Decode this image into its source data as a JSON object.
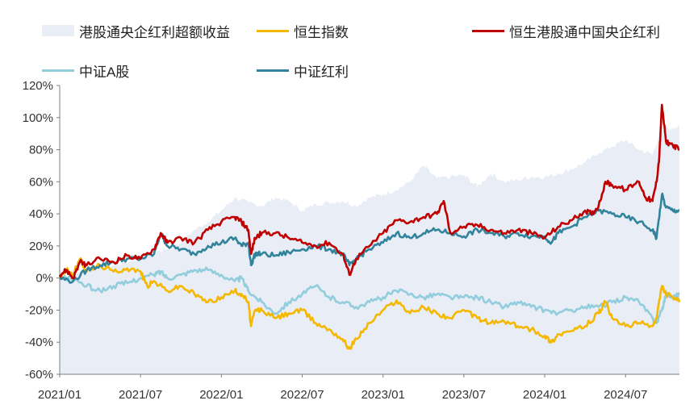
{
  "chart_data": {
    "type": "line",
    "title": "",
    "xlabel": "",
    "ylabel": "",
    "ylim": [
      -60,
      120
    ],
    "yticks": [
      -60,
      -40,
      -20,
      0,
      20,
      40,
      60,
      80,
      100,
      120
    ],
    "ytick_labels": [
      "-60%",
      "-40%",
      "-20%",
      "0%",
      "20%",
      "40%",
      "60%",
      "80%",
      "100%",
      "120%"
    ],
    "x_range": [
      0,
      46
    ],
    "xticks": [
      0,
      6,
      12,
      18,
      24,
      30,
      36,
      42
    ],
    "xtick_labels": [
      "2021/01",
      "2021/07",
      "2022/01",
      "2022/07",
      "2023/01",
      "2023/07",
      "2024/01",
      "2024/07"
    ],
    "x_unit": "months since 2021/01",
    "legend_position": "top",
    "series": [
      {
        "name": "港股通央企红利超额收益",
        "kind": "area",
        "color": "#e8edf6",
        "x": [
          0,
          2,
          4,
          6,
          7,
          8,
          9,
          10,
          11,
          12,
          13,
          14,
          15,
          16,
          17,
          18,
          19,
          20,
          21,
          22,
          23,
          24,
          25,
          26,
          27,
          28,
          29,
          30,
          31,
          32,
          33,
          34,
          35,
          36,
          37,
          38,
          39,
          40,
          41,
          42,
          43,
          44,
          44.5,
          45,
          45.5,
          46
        ],
        "values": [
          0,
          5,
          8,
          12,
          16,
          18,
          22,
          30,
          35,
          42,
          50,
          47,
          45,
          50,
          48,
          42,
          46,
          47,
          48,
          45,
          50,
          52,
          55,
          60,
          70,
          62,
          63,
          64,
          57,
          65,
          60,
          61,
          63,
          63,
          65,
          68,
          72,
          78,
          82,
          86,
          80,
          77,
          88,
          95,
          92,
          96
        ]
      },
      {
        "name": "恒生指数",
        "kind": "line",
        "color": "#f5b800",
        "x": [
          0,
          0.5,
          1,
          1.5,
          2,
          3,
          4,
          5,
          6,
          6.5,
          7,
          8,
          9,
          10,
          11,
          12,
          13,
          13.5,
          14,
          14.2,
          14.5,
          15,
          16,
          17,
          18,
          19,
          20,
          21,
          21.5,
          22,
          23,
          24,
          25,
          26,
          27,
          28,
          29,
          30,
          31,
          32,
          33,
          34,
          35,
          36,
          36.5,
          37,
          38,
          39,
          40,
          40.5,
          41,
          42,
          43,
          44,
          44.3,
          44.7,
          45,
          45.5,
          46
        ],
        "values": [
          0,
          5,
          2,
          12,
          4,
          8,
          4,
          6,
          4,
          -5,
          -2,
          -8,
          -5,
          -10,
          -15,
          -12,
          -8,
          -10,
          -15,
          -30,
          -20,
          -20,
          -25,
          -22,
          -20,
          -28,
          -32,
          -38,
          -44,
          -38,
          -28,
          -20,
          -14,
          -22,
          -18,
          -22,
          -25,
          -20,
          -25,
          -28,
          -27,
          -30,
          -32,
          -36,
          -40,
          -35,
          -33,
          -30,
          -22,
          -15,
          -25,
          -30,
          -28,
          -30,
          -25,
          -5,
          -10,
          -12,
          -15
        ]
      },
      {
        "name": "恒生港股通中国央企红利",
        "kind": "line",
        "color": "#c00000",
        "x": [
          0,
          0.5,
          1,
          1.5,
          2,
          3,
          4,
          5,
          6,
          7,
          7.5,
          8,
          9,
          10,
          11,
          12,
          13,
          13.5,
          14,
          14.2,
          14.5,
          15,
          16,
          17,
          18,
          19,
          20,
          21,
          21.5,
          22,
          23,
          24,
          25,
          26,
          27,
          28,
          28.5,
          29,
          30,
          31,
          32,
          33,
          34,
          35,
          36,
          37,
          38,
          39,
          39.5,
          40,
          40.5,
          41,
          42,
          43,
          43.5,
          44,
          44.3,
          44.5,
          44.7,
          45,
          45.5,
          46
        ],
        "values": [
          2,
          5,
          0,
          10,
          8,
          12,
          10,
          14,
          12,
          18,
          28,
          22,
          25,
          22,
          30,
          35,
          38,
          35,
          30,
          15,
          25,
          28,
          28,
          25,
          22,
          20,
          22,
          15,
          2,
          12,
          20,
          28,
          36,
          35,
          38,
          40,
          48,
          28,
          32,
          33,
          30,
          28,
          30,
          28,
          25,
          32,
          36,
          42,
          40,
          45,
          60,
          58,
          55,
          60,
          50,
          48,
          60,
          75,
          108,
          85,
          83,
          80
        ]
      },
      {
        "name": "中证A股",
        "kind": "line",
        "color": "#92cddc",
        "x": [
          0,
          1,
          2,
          3,
          4,
          5,
          6,
          7,
          7.5,
          8,
          9,
          10,
          11,
          12,
          13,
          13.5,
          14,
          15,
          16,
          17,
          18,
          19,
          20,
          21,
          22,
          23,
          24,
          25,
          26,
          27,
          28,
          29,
          30,
          31,
          32,
          33,
          34,
          35,
          36,
          37,
          38,
          39,
          40,
          41,
          42,
          43,
          44,
          44.3,
          44.7,
          45,
          45.5,
          46
        ],
        "values": [
          0,
          0,
          -5,
          -8,
          -5,
          -3,
          0,
          2,
          4,
          0,
          2,
          5,
          5,
          2,
          -2,
          0,
          -8,
          -15,
          -22,
          -15,
          -10,
          -5,
          -12,
          -15,
          -18,
          -15,
          -12,
          -8,
          -10,
          -12,
          -10,
          -12,
          -12,
          -12,
          -15,
          -18,
          -15,
          -18,
          -20,
          -22,
          -20,
          -18,
          -18,
          -15,
          -12,
          -15,
          -25,
          -28,
          -20,
          -10,
          -12,
          -10
        ]
      },
      {
        "name": "中证红利",
        "kind": "line",
        "color": "#31849b",
        "x": [
          0,
          1,
          2,
          3,
          4,
          5,
          6,
          7,
          7.5,
          8,
          9,
          10,
          11,
          12,
          13,
          13.5,
          14,
          14.2,
          14.5,
          15,
          16,
          17,
          18,
          19,
          20,
          21,
          21.5,
          22,
          23,
          24,
          25,
          26,
          27,
          28,
          29,
          30,
          31,
          32,
          33,
          34,
          35,
          36,
          36.5,
          37,
          38,
          39,
          40,
          41,
          42,
          43,
          44,
          44.3,
          44.7,
          45,
          45.5,
          46
        ],
        "values": [
          0,
          -2,
          5,
          8,
          10,
          12,
          12,
          15,
          28,
          20,
          18,
          15,
          20,
          22,
          25,
          20,
          22,
          8,
          15,
          15,
          14,
          16,
          18,
          20,
          18,
          15,
          8,
          12,
          18,
          22,
          28,
          25,
          28,
          30,
          28,
          26,
          30,
          28,
          26,
          28,
          26,
          26,
          22,
          28,
          32,
          38,
          42,
          40,
          38,
          35,
          30,
          25,
          52,
          44,
          42,
          42
        ]
      }
    ]
  }
}
